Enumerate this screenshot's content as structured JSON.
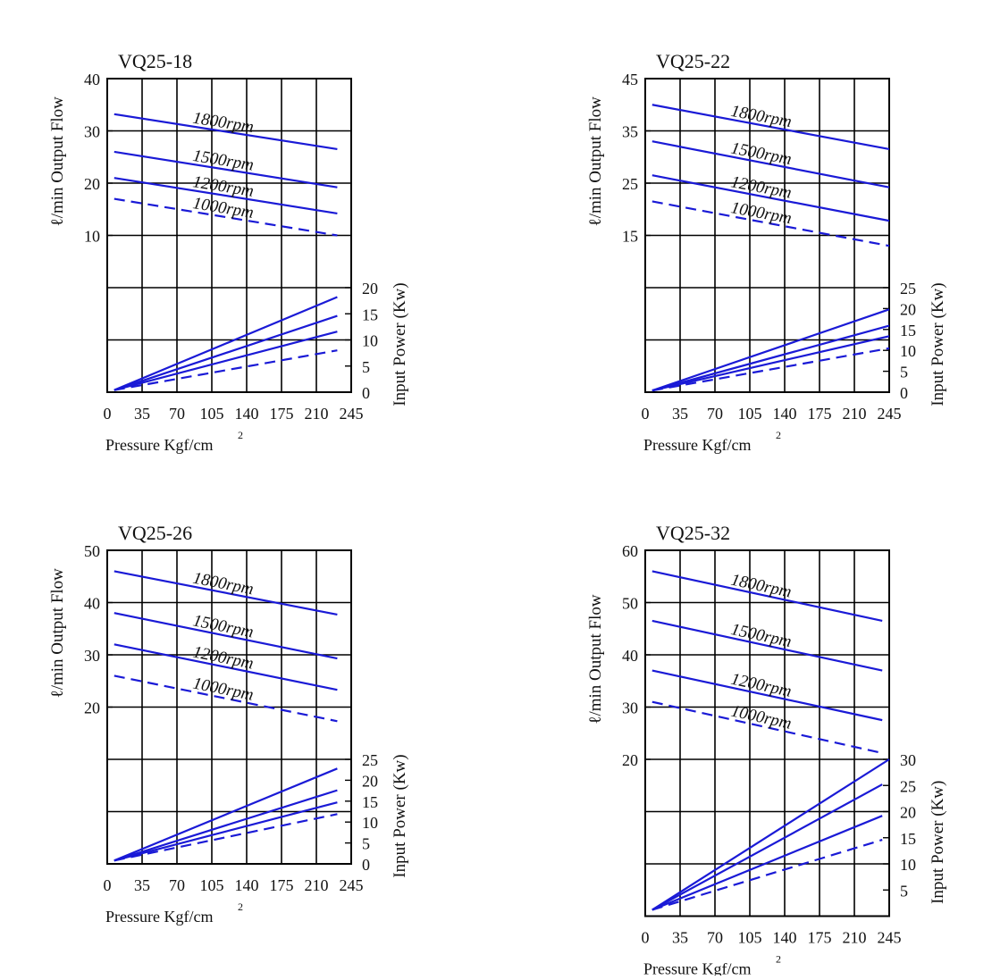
{
  "x_ticks": [
    "0",
    "35",
    "70",
    "105",
    "140",
    "175",
    "210",
    "245"
  ],
  "xlabel_main": "Pressure Kgf/cm",
  "xlabel_sup": "2",
  "ylabel_left": "ℓ/min Output Flow",
  "ylabel_right": "Input Power (Kw)",
  "line_color": "#1a1ad6",
  "chart_data": [
    {
      "type": "line",
      "title": "VQ25-18",
      "xlim": [
        0,
        245
      ],
      "flow_ticks": [
        "40",
        "30",
        "20",
        "10"
      ],
      "flow_ylim": [
        10,
        40
      ],
      "power_ticks": [
        "20",
        "15",
        "10",
        "5",
        "0"
      ],
      "power_ylim": [
        0,
        20
      ],
      "flow_series": [
        {
          "name": "1800rpm",
          "x": [
            7,
            231
          ],
          "y": [
            33.2,
            26.5
          ],
          "dash": false
        },
        {
          "name": "1500rpm",
          "x": [
            7,
            231
          ],
          "y": [
            26.0,
            19.2
          ],
          "dash": false
        },
        {
          "name": "1200rpm",
          "x": [
            7,
            231
          ],
          "y": [
            21.0,
            14.2
          ],
          "dash": false
        },
        {
          "name": "1000rpm",
          "x": [
            7,
            231
          ],
          "y": [
            17.0,
            10.0
          ],
          "dash": true
        }
      ],
      "power_series": [
        {
          "name": "1800rpm",
          "x": [
            7,
            231
          ],
          "y": [
            0.4,
            18.2
          ],
          "dash": false
        },
        {
          "name": "1500rpm",
          "x": [
            7,
            231
          ],
          "y": [
            0.4,
            14.6
          ],
          "dash": false
        },
        {
          "name": "1200rpm",
          "x": [
            7,
            231
          ],
          "y": [
            0.4,
            11.6
          ],
          "dash": false
        },
        {
          "name": "1000rpm",
          "x": [
            7,
            231
          ],
          "y": [
            0.4,
            8.0
          ],
          "dash": true
        }
      ]
    },
    {
      "type": "line",
      "title": "VQ25-22",
      "xlim": [
        0,
        245
      ],
      "flow_ticks": [
        "45",
        "35",
        "25",
        "15"
      ],
      "flow_ylim": [
        15,
        45
      ],
      "power_ticks": [
        "25",
        "20",
        "15",
        "10",
        "5",
        "0"
      ],
      "power_ylim": [
        0,
        25
      ],
      "flow_series": [
        {
          "name": "1800rpm",
          "x": [
            7,
            245
          ],
          "y": [
            40.0,
            31.5
          ],
          "dash": false
        },
        {
          "name": "1500rpm",
          "x": [
            7,
            245
          ],
          "y": [
            33.0,
            24.2
          ],
          "dash": false
        },
        {
          "name": "1200rpm",
          "x": [
            7,
            245
          ],
          "y": [
            26.5,
            17.8
          ],
          "dash": false
        },
        {
          "name": "1000rpm",
          "x": [
            7,
            245
          ],
          "y": [
            21.5,
            13.0
          ],
          "dash": true
        }
      ],
      "power_series": [
        {
          "name": "1800rpm",
          "x": [
            7,
            245
          ],
          "y": [
            0.4,
            19.8
          ],
          "dash": false
        },
        {
          "name": "1500rpm",
          "x": [
            7,
            245
          ],
          "y": [
            0.4,
            15.9
          ],
          "dash": false
        },
        {
          "name": "1200rpm",
          "x": [
            7,
            245
          ],
          "y": [
            0.4,
            13.4
          ],
          "dash": false
        },
        {
          "name": "1000rpm",
          "x": [
            7,
            245
          ],
          "y": [
            0.4,
            10.5
          ],
          "dash": true
        }
      ]
    },
    {
      "type": "line",
      "title": "VQ25-26",
      "xlim": [
        0,
        245
      ],
      "flow_ticks": [
        "50",
        "40",
        "30",
        "20"
      ],
      "flow_ylim": [
        20,
        50
      ],
      "power_ticks": [
        "25",
        "20",
        "15",
        "10",
        "5",
        "0"
      ],
      "power_ylim": [
        0,
        25
      ],
      "flow_series": [
        {
          "name": "1800rpm",
          "x": [
            7,
            231
          ],
          "y": [
            46.0,
            37.7
          ],
          "dash": false
        },
        {
          "name": "1500rpm",
          "x": [
            7,
            231
          ],
          "y": [
            38.0,
            29.3
          ],
          "dash": false
        },
        {
          "name": "1200rpm",
          "x": [
            7,
            231
          ],
          "y": [
            32.0,
            23.3
          ],
          "dash": false
        },
        {
          "name": "1000rpm",
          "x": [
            7,
            231
          ],
          "y": [
            26.0,
            17.3
          ],
          "dash": true
        }
      ],
      "power_series": [
        {
          "name": "1800rpm",
          "x": [
            7,
            231
          ],
          "y": [
            0.8,
            22.8
          ],
          "dash": false
        },
        {
          "name": "1500rpm",
          "x": [
            7,
            231
          ],
          "y": [
            0.8,
            17.6
          ],
          "dash": false
        },
        {
          "name": "1200rpm",
          "x": [
            7,
            231
          ],
          "y": [
            0.8,
            14.7
          ],
          "dash": false
        },
        {
          "name": "1000rpm",
          "x": [
            7,
            231
          ],
          "y": [
            0.8,
            11.9
          ],
          "dash": true
        }
      ]
    },
    {
      "type": "line",
      "title": "VQ25-32",
      "xlim": [
        0,
        245
      ],
      "flow_ticks": [
        "60",
        "50",
        "40",
        "30",
        "20"
      ],
      "flow_ylim": [
        20,
        60
      ],
      "power_ticks": [
        "30",
        "25",
        "20",
        "15",
        "10",
        "5"
      ],
      "power_ylim": [
        0,
        30
      ],
      "flow_series": [
        {
          "name": "1800rpm",
          "x": [
            7,
            238
          ],
          "y": [
            56.0,
            46.5
          ],
          "dash": false
        },
        {
          "name": "1500rpm",
          "x": [
            7,
            238
          ],
          "y": [
            46.5,
            37.0
          ],
          "dash": false
        },
        {
          "name": "1200rpm",
          "x": [
            7,
            238
          ],
          "y": [
            37.0,
            27.5
          ],
          "dash": false
        },
        {
          "name": "1000rpm",
          "x": [
            7,
            238
          ],
          "y": [
            31.0,
            21.2
          ],
          "dash": true
        }
      ],
      "power_series": [
        {
          "name": "1800rpm",
          "x": [
            7,
            245
          ],
          "y": [
            1.2,
            30.0
          ],
          "dash": false
        },
        {
          "name": "1500rpm",
          "x": [
            7,
            238
          ],
          "y": [
            1.2,
            25.2
          ],
          "dash": false
        },
        {
          "name": "1200rpm",
          "x": [
            7,
            238
          ],
          "y": [
            1.2,
            19.2
          ],
          "dash": false
        },
        {
          "name": "1000rpm",
          "x": [
            7,
            238
          ],
          "y": [
            1.2,
            14.6
          ],
          "dash": true
        }
      ]
    }
  ]
}
